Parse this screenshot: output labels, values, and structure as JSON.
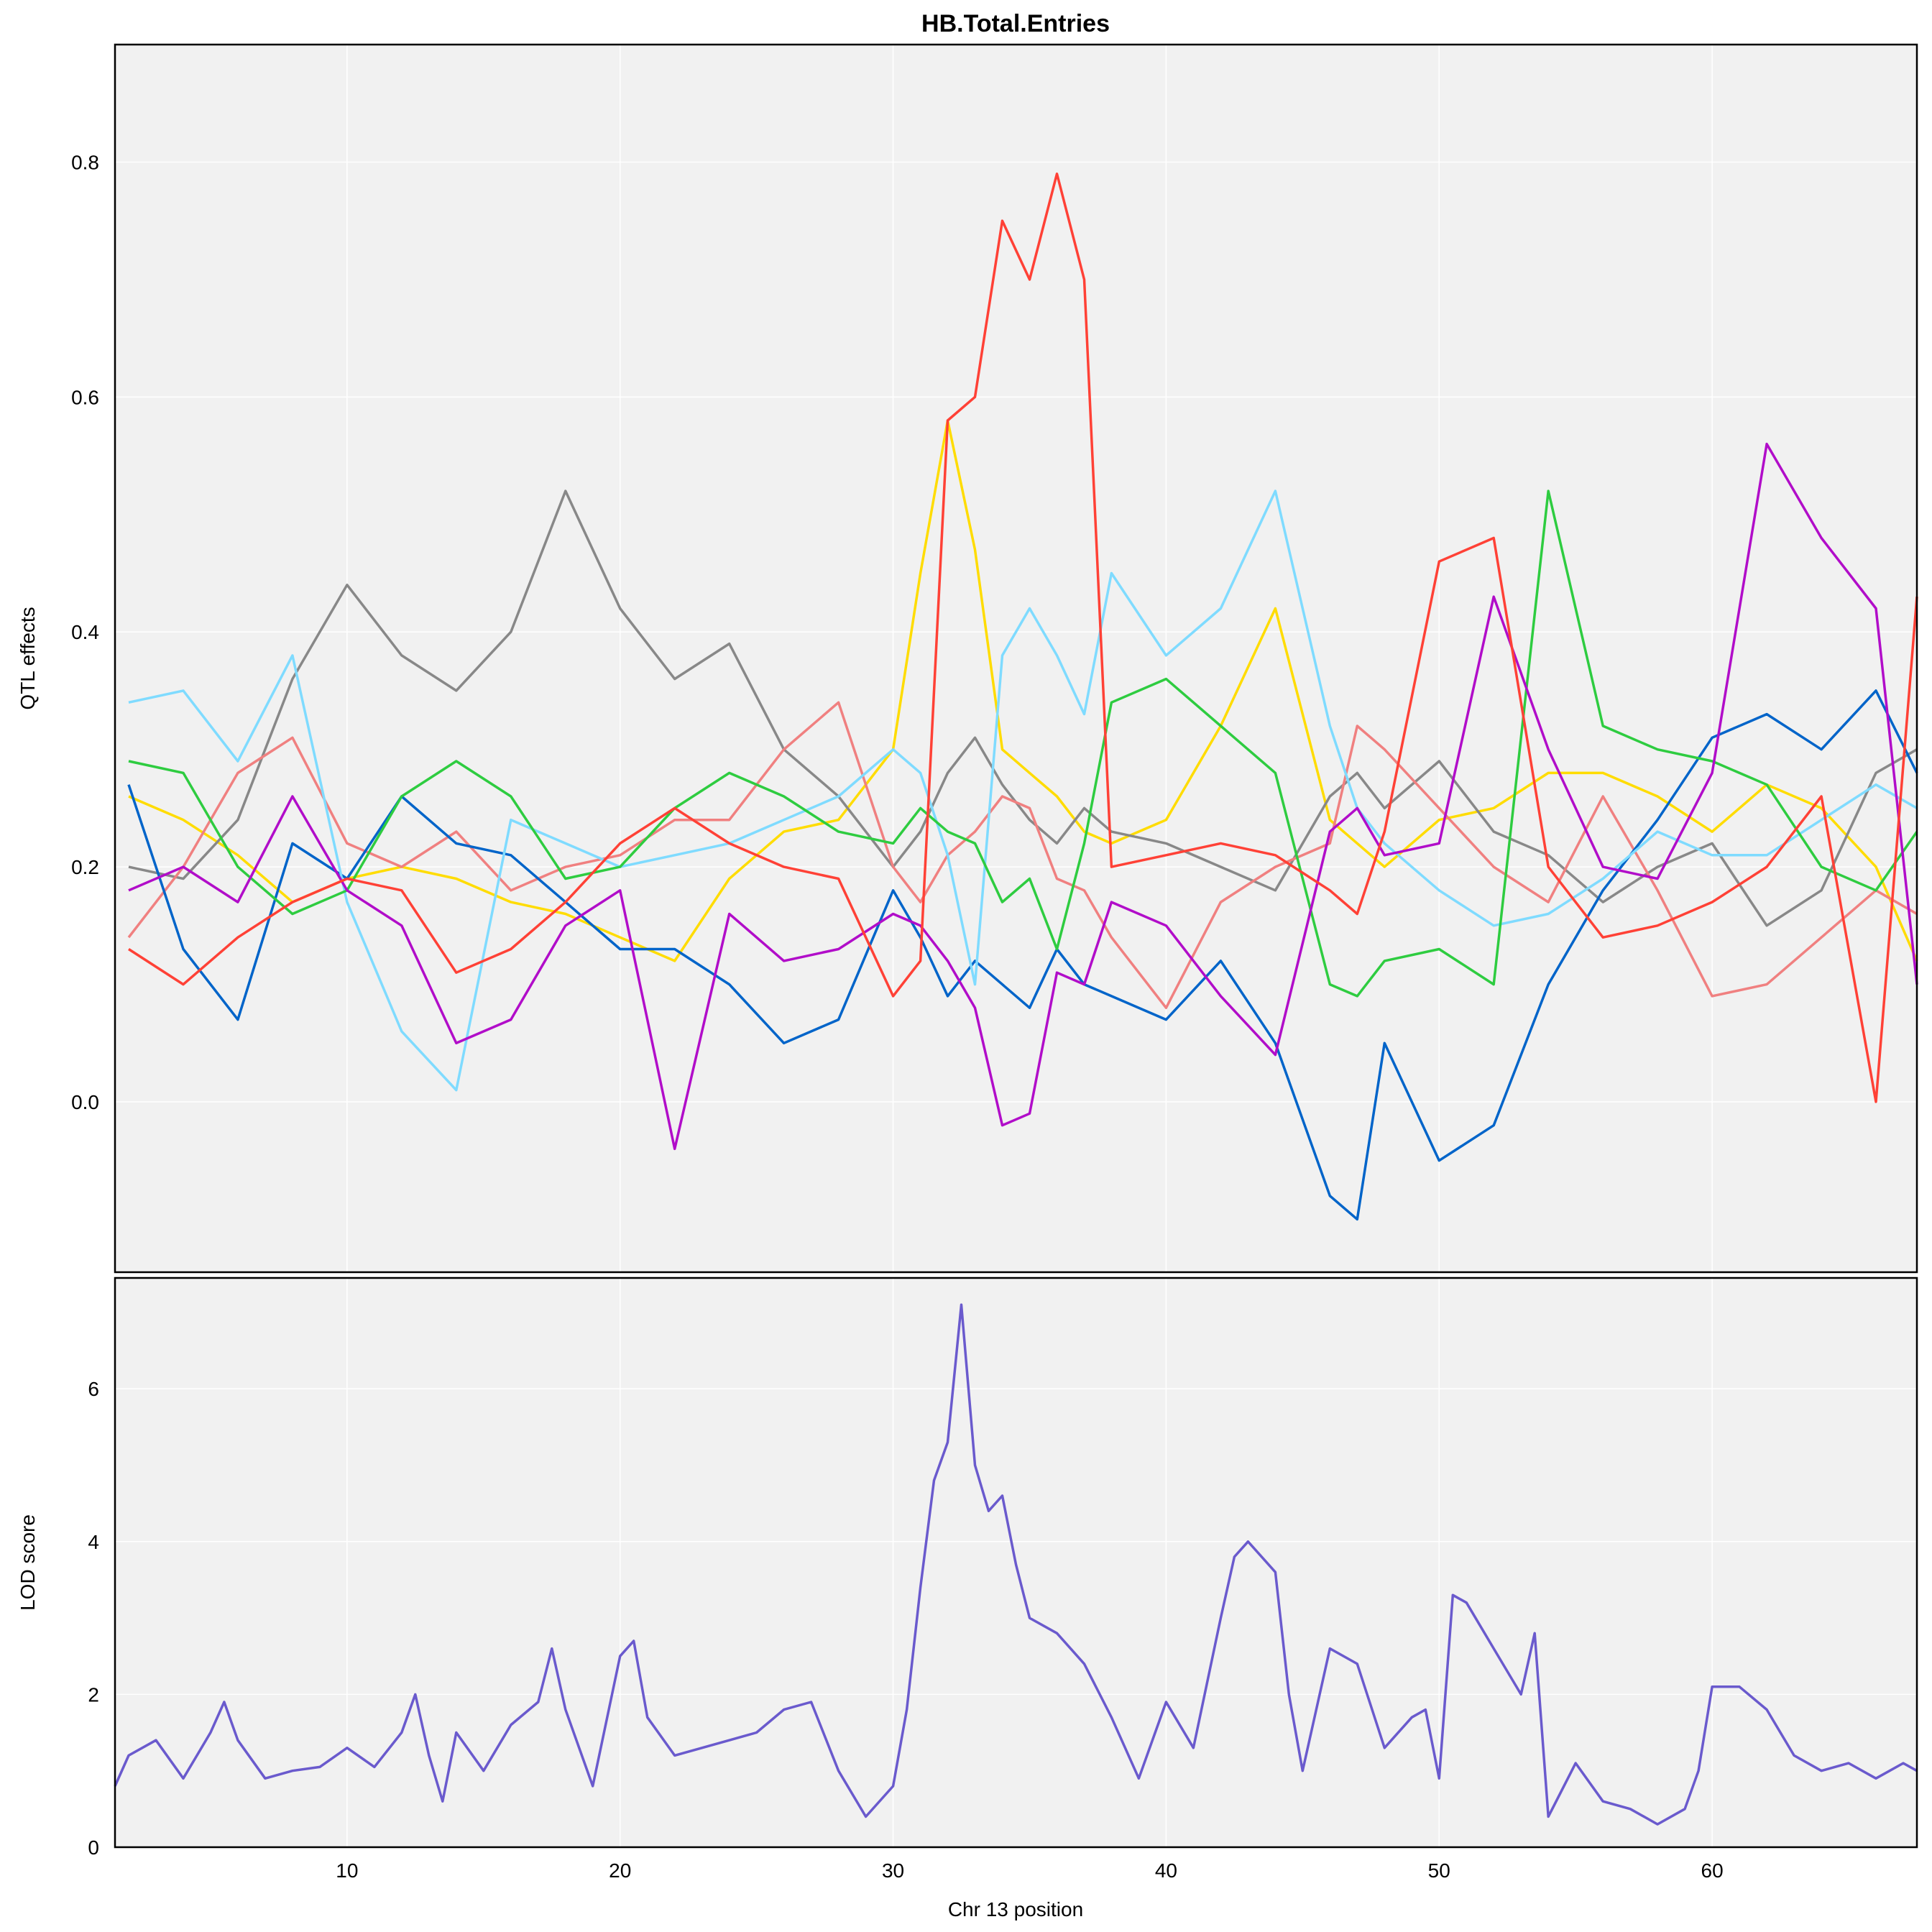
{
  "chart_data": [
    {
      "type": "line",
      "panel": "effects",
      "title": "HB.Total.Entries",
      "ylabel": "QTL effects",
      "xlim": [
        1.5,
        67.5
      ],
      "ylim": [
        -0.145,
        0.9
      ],
      "yticks": [
        0.0,
        0.2,
        0.4,
        0.6,
        0.8
      ],
      "ytick_labels": [
        "0.0",
        "0.2",
        "0.4",
        "0.6",
        "0.8"
      ],
      "grid": true,
      "x": [
        2,
        4,
        6,
        8,
        10,
        12,
        14,
        16,
        18,
        20,
        22,
        24,
        26,
        28,
        30,
        31,
        32,
        33,
        34,
        35,
        36,
        37,
        38,
        40,
        42,
        44,
        46,
        47,
        48,
        50,
        52,
        54,
        56,
        58,
        60,
        62,
        64,
        66,
        67.5
      ],
      "series": [
        {
          "color": "#FFDC00",
          "values": [
            0.26,
            0.24,
            0.21,
            0.17,
            0.19,
            0.2,
            0.19,
            0.17,
            0.16,
            0.14,
            0.12,
            0.19,
            0.23,
            0.24,
            0.3,
            0.45,
            0.58,
            0.47,
            0.3,
            0.28,
            0.26,
            0.23,
            0.22,
            0.24,
            0.32,
            0.42,
            0.24,
            0.22,
            0.2,
            0.24,
            0.25,
            0.28,
            0.28,
            0.26,
            0.23,
            0.27,
            0.25,
            0.2,
            0.12
          ]
        },
        {
          "color": "#888888",
          "values": [
            0.2,
            0.19,
            0.24,
            0.36,
            0.44,
            0.38,
            0.35,
            0.4,
            0.52,
            0.42,
            0.36,
            0.39,
            0.3,
            0.26,
            0.2,
            0.23,
            0.28,
            0.31,
            0.27,
            0.24,
            0.22,
            0.25,
            0.23,
            0.22,
            0.2,
            0.18,
            0.26,
            0.28,
            0.25,
            0.29,
            0.23,
            0.21,
            0.17,
            0.2,
            0.22,
            0.15,
            0.18,
            0.28,
            0.3
          ]
        },
        {
          "color": "#F08080",
          "values": [
            0.14,
            0.2,
            0.28,
            0.31,
            0.22,
            0.2,
            0.23,
            0.18,
            0.2,
            0.21,
            0.24,
            0.24,
            0.3,
            0.34,
            0.2,
            0.17,
            0.21,
            0.23,
            0.26,
            0.25,
            0.19,
            0.18,
            0.14,
            0.08,
            0.17,
            0.2,
            0.22,
            0.32,
            0.3,
            0.25,
            0.2,
            0.17,
            0.26,
            0.18,
            0.09,
            0.1,
            0.14,
            0.18,
            0.16
          ]
        },
        {
          "color": "#0064C9",
          "values": [
            0.27,
            0.13,
            0.07,
            0.22,
            0.19,
            0.26,
            0.22,
            0.21,
            0.17,
            0.13,
            0.13,
            0.1,
            0.05,
            0.07,
            0.18,
            0.14,
            0.09,
            0.12,
            0.1,
            0.08,
            0.13,
            0.1,
            0.09,
            0.07,
            0.12,
            0.05,
            -0.08,
            -0.1,
            0.05,
            -0.05,
            -0.02,
            0.1,
            0.18,
            0.24,
            0.31,
            0.33,
            0.3,
            0.35,
            0.28
          ]
        },
        {
          "color": "#7FDBFF",
          "values": [
            0.34,
            0.35,
            0.29,
            0.38,
            0.17,
            0.06,
            0.01,
            0.24,
            0.22,
            0.2,
            0.21,
            0.22,
            0.24,
            0.26,
            0.3,
            0.28,
            0.21,
            0.1,
            0.38,
            0.42,
            0.38,
            0.33,
            0.45,
            0.38,
            0.42,
            0.52,
            0.32,
            0.25,
            0.22,
            0.18,
            0.15,
            0.16,
            0.19,
            0.23,
            0.21,
            0.21,
            0.24,
            0.27,
            0.25
          ]
        },
        {
          "color": "#2ECC40",
          "values": [
            0.29,
            0.28,
            0.2,
            0.16,
            0.18,
            0.26,
            0.29,
            0.26,
            0.19,
            0.2,
            0.25,
            0.28,
            0.26,
            0.23,
            0.22,
            0.25,
            0.23,
            0.22,
            0.17,
            0.19,
            0.13,
            0.22,
            0.34,
            0.36,
            0.32,
            0.28,
            0.1,
            0.09,
            0.12,
            0.13,
            0.1,
            0.52,
            0.32,
            0.3,
            0.29,
            0.27,
            0.2,
            0.18,
            0.23
          ]
        },
        {
          "color": "#B10DC9",
          "values": [
            0.18,
            0.2,
            0.17,
            0.26,
            0.18,
            0.15,
            0.05,
            0.07,
            0.15,
            0.18,
            -0.04,
            0.16,
            0.12,
            0.13,
            0.16,
            0.15,
            0.12,
            0.08,
            -0.02,
            -0.01,
            0.11,
            0.1,
            0.17,
            0.15,
            0.09,
            0.04,
            0.23,
            0.25,
            0.21,
            0.22,
            0.43,
            0.3,
            0.2,
            0.19,
            0.28,
            0.56,
            0.48,
            0.42,
            0.1
          ]
        },
        {
          "color": "#FF4136",
          "values": [
            0.13,
            0.1,
            0.14,
            0.17,
            0.19,
            0.18,
            0.11,
            0.13,
            0.17,
            0.22,
            0.25,
            0.22,
            0.2,
            0.19,
            0.09,
            0.12,
            0.58,
            0.6,
            0.75,
            0.7,
            0.79,
            0.7,
            0.2,
            0.21,
            0.22,
            0.21,
            0.18,
            0.16,
            0.23,
            0.46,
            0.48,
            0.2,
            0.14,
            0.15,
            0.17,
            0.2,
            0.26,
            0.0,
            0.43
          ]
        }
      ]
    },
    {
      "type": "line",
      "panel": "lod",
      "ylabel": "LOD score",
      "xlabel": "Chr 13 position",
      "xlim": [
        1.5,
        67.5
      ],
      "ylim": [
        0,
        7.45
      ],
      "xticks": [
        10,
        20,
        30,
        40,
        50,
        60
      ],
      "xtick_labels": [
        "10",
        "20",
        "30",
        "40",
        "50",
        "60"
      ],
      "yticks": [
        0,
        2,
        4,
        6
      ],
      "ytick_labels": [
        "0",
        "2",
        "4",
        "6"
      ],
      "grid": true,
      "series": [
        {
          "color": "#6A5ACD",
          "x": [
            1.5,
            2,
            3,
            4,
            4.5,
            5,
            5.5,
            6,
            7,
            8,
            9,
            10,
            11,
            12,
            12.5,
            13,
            13.5,
            14,
            15,
            16,
            17,
            17.5,
            18,
            19,
            20,
            20.5,
            21,
            22,
            23,
            24,
            25,
            26,
            27,
            28,
            29,
            30,
            30.5,
            31,
            31.5,
            32,
            32.5,
            33,
            33.5,
            34,
            34.5,
            35,
            36,
            37,
            38,
            39,
            40,
            41,
            42,
            42.5,
            43,
            44,
            44.5,
            45,
            46,
            47,
            48,
            49,
            49.5,
            50,
            50.5,
            51,
            52,
            53,
            53.5,
            54,
            55,
            56,
            57,
            58,
            59,
            59.5,
            60,
            61,
            62,
            63,
            64,
            65,
            66,
            67,
            67.5
          ],
          "values": [
            0.8,
            1.2,
            1.4,
            0.9,
            1.2,
            1.5,
            1.9,
            1.4,
            0.9,
            1.0,
            1.05,
            1.3,
            1.05,
            1.5,
            2.0,
            1.2,
            0.6,
            1.5,
            1.0,
            1.6,
            1.9,
            2.6,
            1.8,
            0.8,
            2.5,
            2.7,
            1.7,
            1.2,
            1.3,
            1.4,
            1.5,
            1.8,
            1.9,
            1.0,
            0.4,
            0.8,
            1.8,
            3.4,
            4.8,
            5.3,
            7.1,
            5.0,
            4.4,
            4.6,
            3.7,
            3.0,
            2.8,
            2.4,
            1.7,
            0.9,
            1.9,
            1.3,
            3.0,
            3.8,
            4.0,
            3.6,
            2.0,
            1.0,
            2.6,
            2.4,
            1.3,
            1.7,
            1.8,
            0.9,
            3.3,
            3.2,
            2.6,
            2.0,
            2.8,
            0.4,
            1.1,
            0.6,
            0.5,
            0.3,
            0.5,
            1.0,
            2.1,
            2.1,
            1.8,
            1.2,
            1.0,
            1.1,
            0.9,
            1.1,
            1.0
          ]
        }
      ]
    }
  ]
}
